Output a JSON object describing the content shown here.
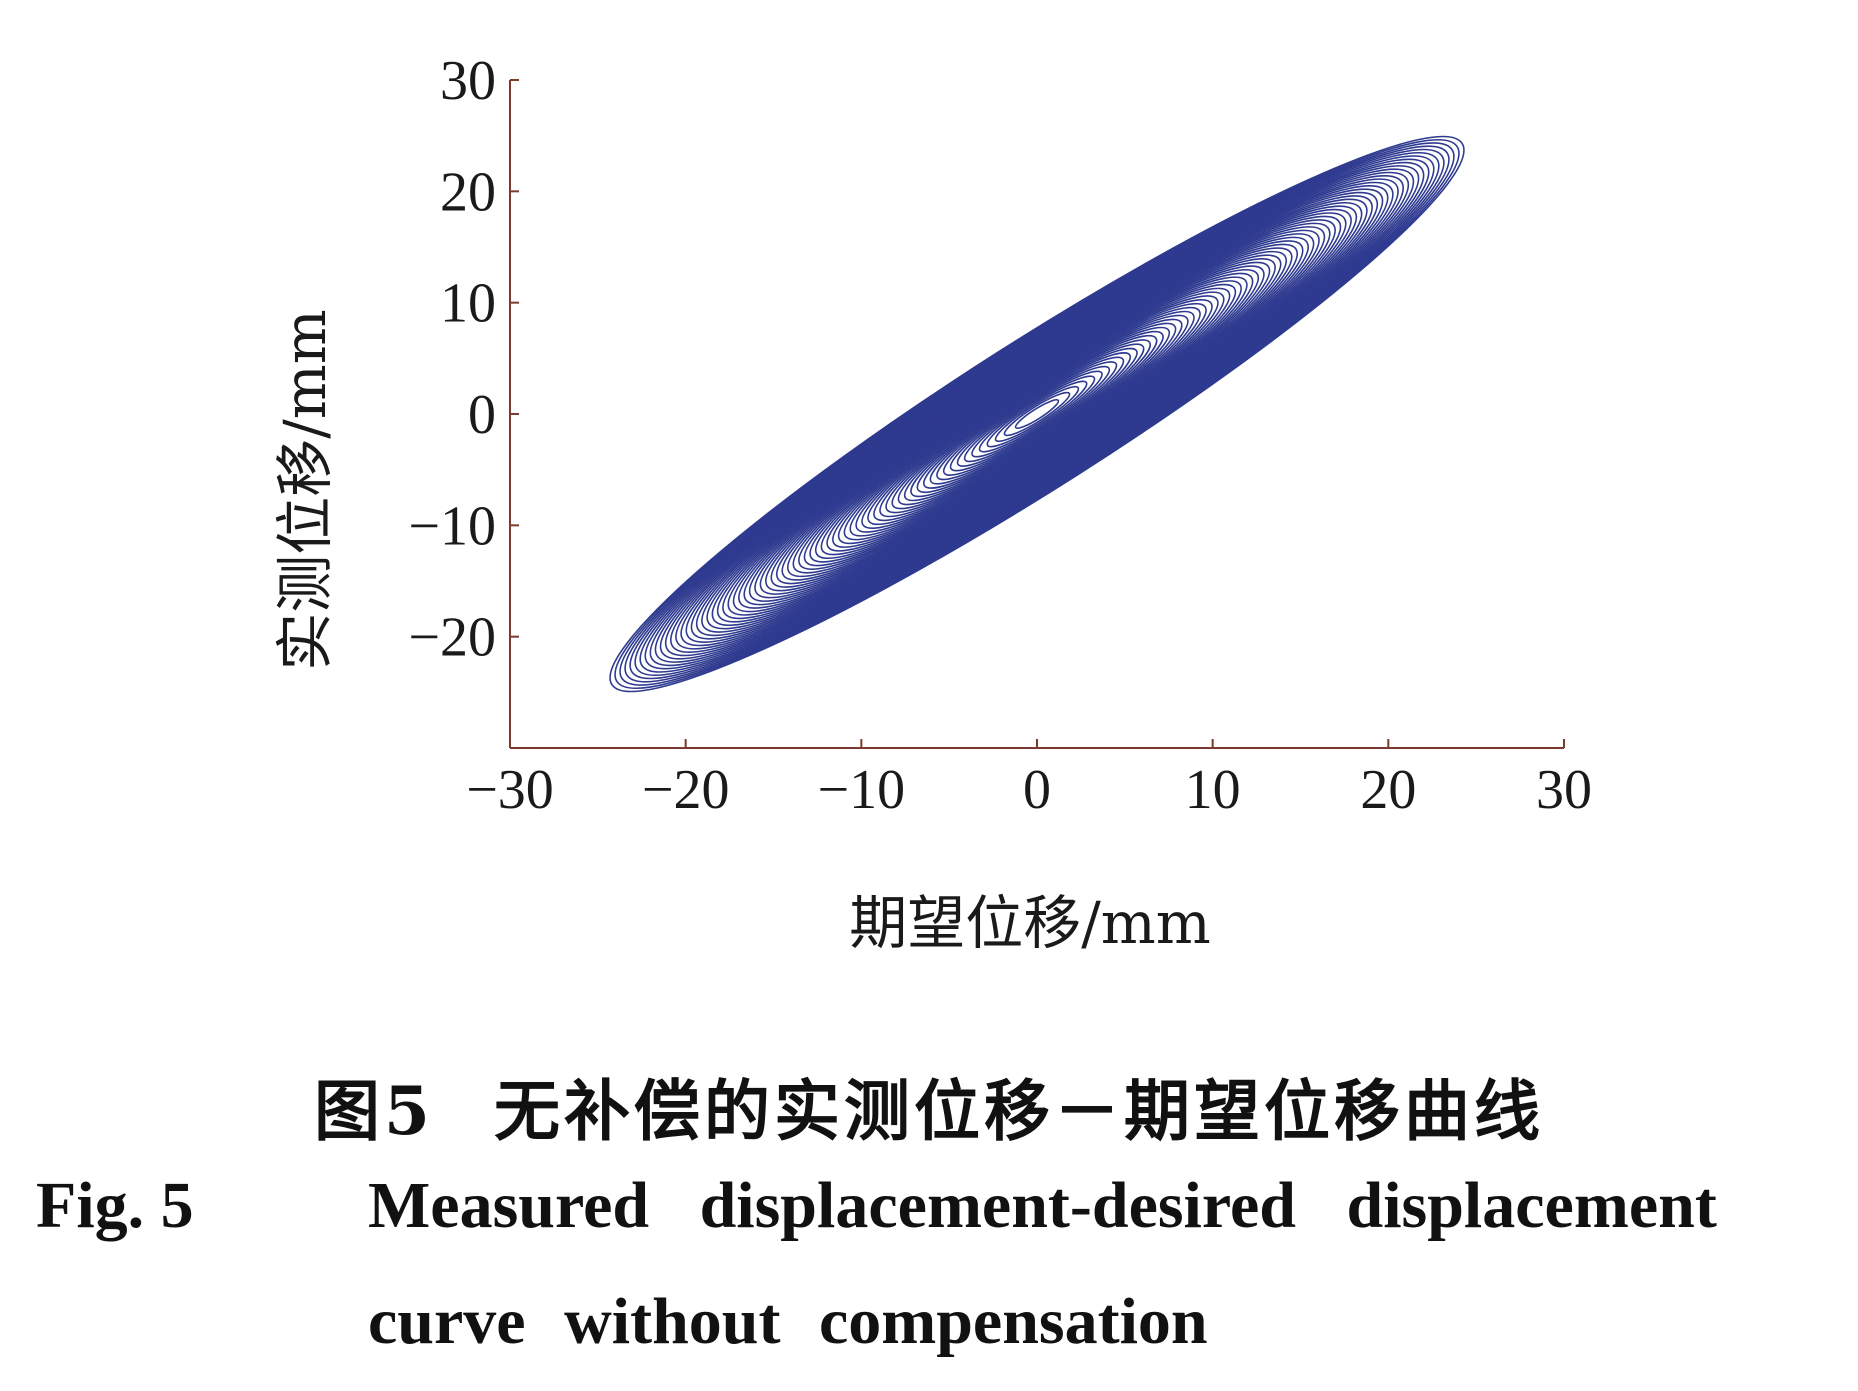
{
  "chart_data": {
    "type": "line",
    "xlabel": "期望位移/mm",
    "ylabel": "实测位移/mm",
    "xlim": [
      -30,
      30
    ],
    "ylim": [
      -30,
      30
    ],
    "x_ticks": [
      "−30",
      "−20",
      "−10",
      "0",
      "10",
      "20",
      "30"
    ],
    "y_ticks": [
      "30",
      "20",
      "10",
      "0",
      "−10",
      "−20"
    ],
    "grid": false,
    "series": [
      {
        "description_points": [
          {
            "x": -24.2,
            "y": -24.3
          },
          {
            "x": -10,
            "y": -10
          },
          {
            "x": 0,
            "y": 0
          },
          {
            "x": 10,
            "y": 10
          },
          {
            "x": 24.2,
            "y": 24.3
          }
        ],
        "color": "#2e3a8f"
      }
    ]
  },
  "caption": {
    "cn_fig": "图5",
    "cn_title": "无补偿的实测位移－期望位移曲线",
    "en_fig": "Fig.  5",
    "en_title_line1": "Measured displacement-desired displacement",
    "en_title_line2": "curve without compensation"
  },
  "colors": {
    "curve": "#2e3a8f",
    "axis": "#7a3b2e"
  }
}
